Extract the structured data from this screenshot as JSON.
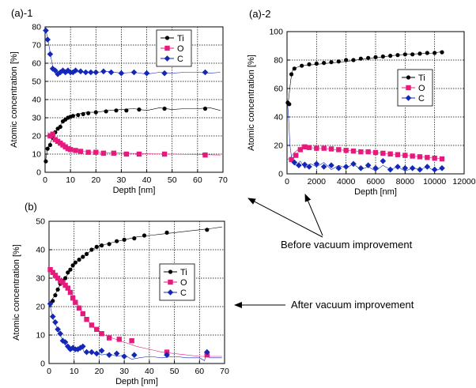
{
  "annotations": {
    "before": "Before vacuum improvement",
    "after": "After vacuum improvement"
  },
  "chart_data": [
    {
      "id": "a1",
      "panel_label": "(a)-1",
      "type": "scatter",
      "xlabel": "Depth [nm]",
      "ylabel": "Atomic concentration [%]",
      "xlim": [
        0,
        70
      ],
      "ylim": [
        0,
        80
      ],
      "xticks": [
        0,
        10,
        20,
        30,
        40,
        50,
        60,
        70
      ],
      "yticks": [
        0,
        10,
        20,
        30,
        40,
        50,
        60,
        70,
        80
      ],
      "grid": true,
      "legend": "top-right",
      "series": [
        {
          "name": "Ti",
          "color": "#000000",
          "marker": "circle",
          "x": [
            0.3,
            1,
            2,
            3,
            4,
            5,
            6,
            7,
            8,
            9,
            10,
            11,
            13,
            15,
            17,
            20,
            24,
            28,
            32,
            37,
            47,
            63
          ],
          "y": [
            6,
            13,
            15,
            19,
            22,
            24,
            25,
            28,
            29,
            30,
            30.5,
            31,
            31.5,
            32,
            32.5,
            33,
            33.5,
            34,
            34,
            34.5,
            35,
            35
          ],
          "trace_x": [
            0,
            1,
            2,
            4,
            6,
            8,
            10,
            13,
            16,
            20,
            25,
            30,
            35,
            40,
            45,
            50,
            55,
            60,
            65,
            69
          ],
          "trace_y": [
            5,
            13,
            16,
            22,
            26,
            29,
            31,
            32,
            33,
            33,
            34,
            34.5,
            35,
            34,
            35.5,
            34.5,
            35,
            35,
            35.5,
            34
          ]
        },
        {
          "name": "O",
          "color": "#e8197c",
          "marker": "square",
          "x": [
            2,
            3,
            4,
            5,
            6,
            7,
            8,
            9,
            10,
            12,
            14,
            17,
            20,
            23,
            27,
            32,
            37,
            47,
            63
          ],
          "y": [
            20,
            21,
            18,
            17,
            16,
            15,
            14,
            13,
            12.5,
            12,
            11.5,
            11,
            11,
            10.5,
            10.5,
            10,
            10,
            10,
            9.5
          ],
          "trace_x": [
            1,
            2,
            4,
            6,
            8,
            10,
            14,
            20,
            30,
            40,
            50,
            60,
            69
          ],
          "trace_y": [
            22,
            21,
            18,
            16,
            14,
            12.5,
            11.5,
            11,
            10.5,
            10.2,
            10,
            9.8,
            9.5
          ]
        },
        {
          "name": "C",
          "color": "#1428b8",
          "marker": "diamond",
          "x": [
            0.3,
            1,
            2,
            3,
            4,
            5,
            6,
            7,
            8,
            9,
            10,
            11,
            12,
            14,
            16,
            18,
            20,
            23,
            26,
            30,
            35,
            40,
            47,
            63
          ],
          "y": [
            78,
            73,
            65,
            57,
            56,
            54,
            55,
            56,
            55,
            56,
            55,
            55,
            56,
            55.5,
            55,
            55,
            55,
            55.5,
            55,
            54.5,
            55,
            54.5,
            54.5,
            55
          ],
          "trace_x": [
            0,
            1,
            2,
            3,
            4,
            5,
            7,
            10,
            15,
            20,
            25,
            30,
            35,
            40,
            45,
            50,
            55,
            60,
            65,
            69
          ],
          "trace_y": [
            80,
            74,
            66,
            58,
            56,
            55,
            55,
            55.5,
            55,
            55,
            55.5,
            54.5,
            55,
            54,
            55,
            54.5,
            55,
            55,
            54.5,
            55
          ]
        }
      ]
    },
    {
      "id": "a2",
      "panel_label": "(a)-2",
      "type": "scatter",
      "xlabel": "Depth [nm]",
      "ylabel": "Atomic concentration [%]",
      "xlim": [
        0,
        12000
      ],
      "ylim": [
        0,
        100
      ],
      "xticks": [
        0,
        2000,
        4000,
        6000,
        8000,
        10000,
        12000
      ],
      "yticks": [
        0,
        20,
        40,
        60,
        80,
        100
      ],
      "grid": true,
      "legend": "middle-right",
      "series": [
        {
          "name": "Ti",
          "color": "#000000",
          "marker": "circle",
          "x": [
            50,
            150,
            300,
            500,
            1000,
            1500,
            2000,
            2500,
            3000,
            3500,
            4000,
            4500,
            5000,
            5500,
            6000,
            6500,
            7000,
            7500,
            8000,
            8500,
            9000,
            9500,
            10000,
            10500
          ],
          "y": [
            50,
            49,
            70,
            74,
            76,
            77,
            77.5,
            78,
            78.5,
            79,
            80,
            80,
            81,
            81.5,
            82,
            82.5,
            83,
            83.5,
            84,
            84,
            84.5,
            85,
            85,
            85.5
          ],
          "trace_x": [
            0,
            100,
            250,
            400,
            700,
            1000,
            2000,
            3000,
            4000,
            5000,
            6000,
            7000,
            8000,
            9000,
            10000,
            10500
          ],
          "trace_y": [
            48,
            52,
            66,
            74,
            75,
            76,
            77,
            78,
            79,
            80.5,
            81.5,
            83,
            84,
            84.5,
            85,
            86
          ]
        },
        {
          "name": "O",
          "color": "#e8197c",
          "marker": "square",
          "x": [
            300,
            600,
            900,
            1200,
            1500,
            2000,
            2500,
            3000,
            3500,
            4000,
            4500,
            5000,
            5500,
            6000,
            6500,
            7000,
            7500,
            8000,
            8500,
            9000,
            9500,
            10000,
            10500
          ],
          "y": [
            10,
            13,
            17,
            19,
            18.5,
            18,
            18,
            17.5,
            17,
            16.5,
            16,
            15.5,
            15.5,
            15,
            14.5,
            14,
            13.5,
            13,
            12.5,
            12,
            11.5,
            11,
            10.5
          ],
          "trace_x": [
            0,
            200,
            500,
            1000,
            2000,
            4000,
            6000,
            8000,
            10000,
            10500
          ],
          "trace_y": [
            10,
            11,
            15,
            19,
            18,
            16.5,
            15,
            13,
            11,
            10.5
          ]
        },
        {
          "name": "C",
          "color": "#1428b8",
          "marker": "diamond",
          "x": [
            500,
            800,
            1200,
            1500,
            2000,
            2500,
            3000,
            3500,
            4000,
            4500,
            5000,
            5500,
            6000,
            6500,
            7000,
            7500,
            8000,
            8500,
            9000,
            9500,
            10000,
            10500
          ],
          "y": [
            8,
            6,
            6.5,
            5,
            7,
            5,
            6,
            4,
            5,
            7,
            4,
            6,
            4,
            9,
            3,
            5,
            4,
            4,
            3,
            5,
            3,
            4
          ],
          "trace_x": [
            0,
            100,
            200,
            300,
            450,
            600,
            900,
            1200,
            1600,
            2000,
            2500,
            3000,
            3500,
            4000,
            4500,
            5000,
            5500,
            6000,
            6500,
            7000,
            7500,
            8000,
            8500,
            9000,
            9500,
            10000,
            10500
          ],
          "trace_y": [
            55,
            40,
            20,
            12,
            8,
            6,
            9,
            4,
            7,
            5,
            8,
            3,
            6,
            4,
            7,
            3,
            5,
            2,
            6,
            3,
            5,
            2,
            4,
            3,
            5,
            2,
            4
          ]
        }
      ]
    },
    {
      "id": "b",
      "panel_label": "(b)",
      "type": "scatter",
      "xlabel": "Depth [nm]",
      "ylabel": "Atomic concentration [%]",
      "xlim": [
        0,
        70
      ],
      "ylim": [
        0,
        50
      ],
      "xticks": [
        0,
        10,
        20,
        30,
        40,
        50,
        60,
        70
      ],
      "yticks": [
        0,
        10,
        20,
        30,
        40,
        50
      ],
      "grid": true,
      "legend": "middle-right",
      "series": [
        {
          "name": "Ti",
          "color": "#000000",
          "marker": "circle",
          "x": [
            0.5,
            1.5,
            2.5,
            3.5,
            4.5,
            5.5,
            6.5,
            7.5,
            8.5,
            9.5,
            10.5,
            12,
            13.5,
            15,
            17,
            19,
            21,
            24,
            27,
            30,
            34,
            38,
            47,
            63
          ],
          "y": [
            21,
            22,
            24,
            26,
            28,
            29,
            30,
            32,
            33,
            34.5,
            35.5,
            36.5,
            37.5,
            38.5,
            40,
            41,
            41.5,
            42,
            43,
            43.5,
            44,
            45,
            46,
            47
          ],
          "trace_x": [
            0,
            2,
            4,
            6,
            8,
            10,
            12,
            15,
            18,
            21,
            25,
            30,
            35,
            40,
            45,
            50,
            55,
            60,
            65,
            69
          ],
          "trace_y": [
            21,
            23.5,
            27,
            29.5,
            32,
            35,
            36.5,
            38.5,
            40.5,
            41.5,
            42.5,
            43.5,
            44.5,
            45,
            45.5,
            46,
            46.5,
            47,
            47.5,
            48
          ]
        },
        {
          "name": "O",
          "color": "#e8197c",
          "marker": "square",
          "x": [
            0.5,
            1.5,
            2.5,
            3.5,
            4.5,
            5.5,
            6.5,
            7.5,
            8.5,
            9.5,
            10.5,
            12,
            13.5,
            15,
            17,
            19,
            21,
            24,
            28,
            33,
            47,
            63
          ],
          "y": [
            33,
            32,
            31,
            30,
            29,
            28.5,
            27.5,
            26.5,
            25,
            23,
            21.5,
            19.5,
            17.5,
            15.5,
            13.5,
            12,
            10.5,
            9,
            8.5,
            8,
            4,
            3
          ],
          "trace_x": [
            0,
            3,
            6,
            9,
            12,
            15,
            18,
            21,
            25,
            30,
            35,
            40,
            45,
            50,
            55,
            60,
            65,
            69
          ],
          "trace_y": [
            33,
            30.5,
            28,
            24.5,
            20,
            15.5,
            12.5,
            10.5,
            9,
            7.5,
            6,
            5,
            4,
            3.5,
            3,
            2.5,
            2.5,
            2.5
          ]
        },
        {
          "name": "C",
          "color": "#1428b8",
          "marker": "diamond",
          "x": [
            0.5,
            1.5,
            2.5,
            3.5,
            4.5,
            5.5,
            6.5,
            7.5,
            8.5,
            9.5,
            10.5,
            11.5,
            12.5,
            13.5,
            15,
            17,
            19,
            21,
            24,
            27,
            30,
            34,
            47,
            63
          ],
          "y": [
            21,
            16.5,
            14.5,
            12,
            10.5,
            8,
            7.5,
            6,
            5,
            5.5,
            5,
            5,
            5.5,
            6,
            4,
            4,
            3.5,
            4.5,
            3,
            3.5,
            2.5,
            3,
            3,
            4
          ],
          "trace_x": [
            0,
            1,
            2,
            3,
            4,
            5,
            6,
            7,
            8,
            9,
            10,
            11,
            12,
            13,
            14,
            15,
            17,
            19,
            21,
            24,
            27,
            30,
            33,
            36,
            40,
            45,
            50,
            55,
            60,
            62,
            63,
            64,
            66,
            69
          ],
          "trace_y": [
            22,
            18,
            15,
            13,
            11,
            9,
            7,
            6,
            5,
            5.5,
            4.5,
            5.5,
            5,
            6,
            4,
            4.5,
            3.5,
            4,
            3,
            3.5,
            2.5,
            3,
            1.5,
            2,
            2.5,
            2,
            2.5,
            2,
            2,
            1,
            4,
            2,
            2,
            2
          ]
        }
      ]
    }
  ]
}
